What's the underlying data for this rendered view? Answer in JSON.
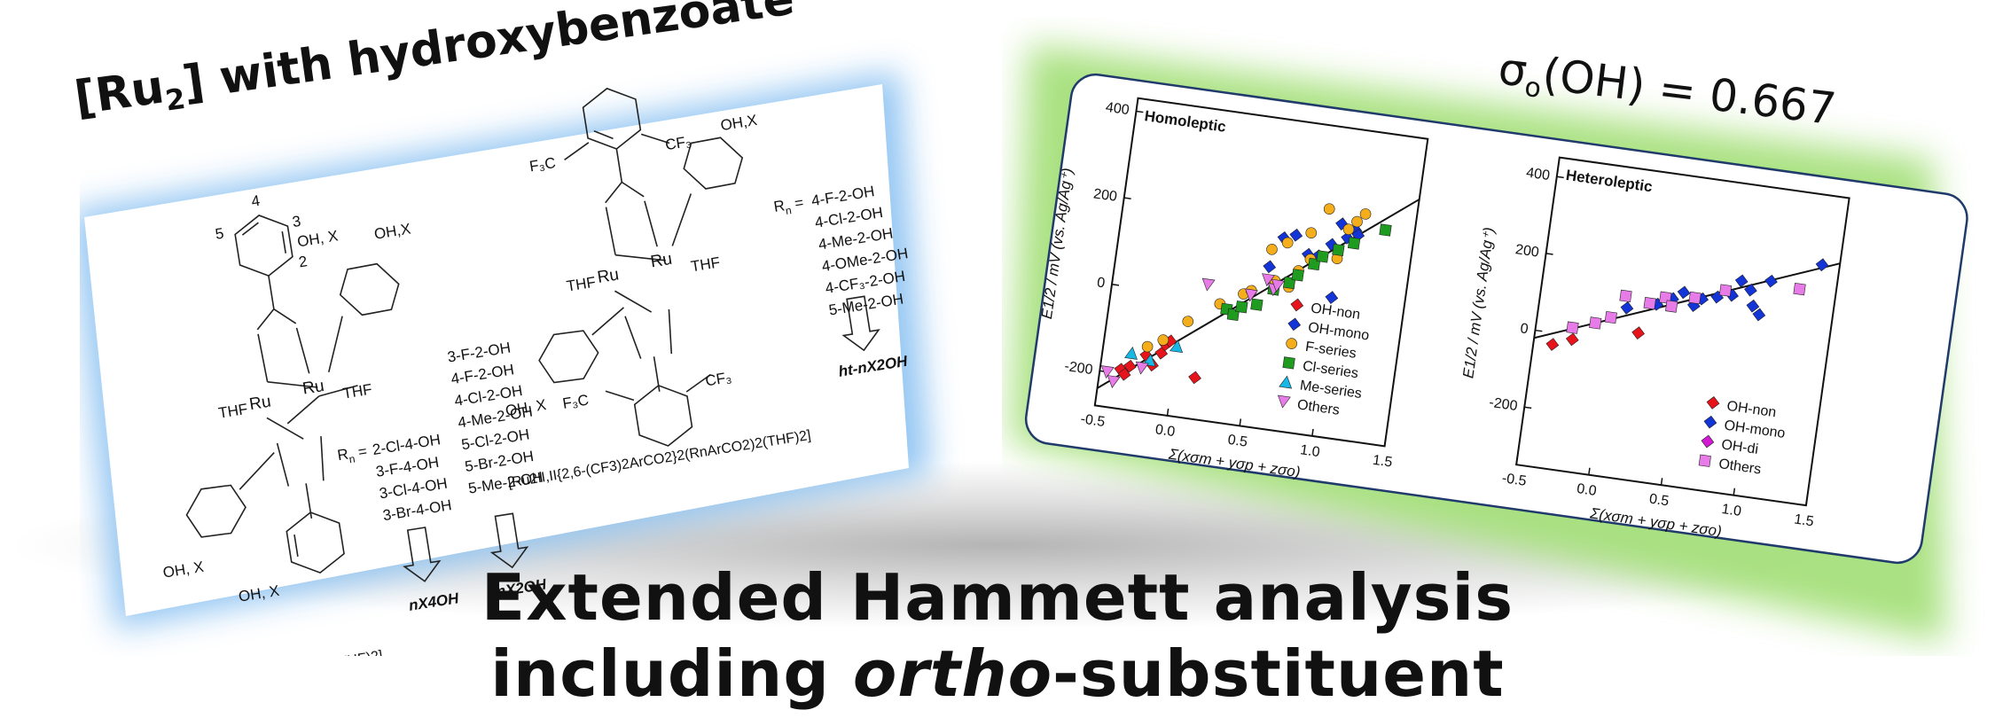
{
  "banner": {
    "left_title_pre": "[Ru",
    "left_title_sub": "2",
    "left_title_post": "] with hydroxybenzoate",
    "right_title_pre": "σ",
    "right_title_sub": "o",
    "right_title_post": "(OH) = 0.667",
    "headline_line1": "Extended Hammett analysis",
    "headline_line2_pre": "including ",
    "headline_line2_italic": "ortho",
    "headline_line2_post": "-substituent"
  },
  "colors": {
    "blue_glow": "#8ec3f2",
    "green_glow": "#a6e07c",
    "card_border": "#1f3a6b",
    "OH-non": "#e8141b",
    "OH-mono": "#1334d6",
    "OH-di": "#d11ad1",
    "F-series": "#f5ae1b",
    "Cl-series": "#1f9b1f",
    "Me-series": "#18b8e6",
    "Others": "#e77be8"
  },
  "structures": {
    "left": {
      "pos4": "4",
      "pos3": "3",
      "pos5": "5",
      "pos2": "2",
      "oh_x_top": "OH, X",
      "oh_x_right": "OH,X",
      "thf_left": "THF",
      "thf_right": "THF",
      "ru1": "Ru",
      "ru2": "Ru",
      "oh_x_bottom_left": "OH, X",
      "oh_x_bottom": "OH, X",
      "rn_label": "R",
      "rn_sub": "n",
      "rn_eq": " = ",
      "list_4oh": [
        "2-Cl-4-OH",
        "3-F-4-OH",
        "3-Cl-4-OH",
        "3-Br-4-OH"
      ],
      "list_2oh": [
        "3-F-2-OH",
        "4-F-2-OH",
        "4-Cl-2-OH",
        "4-Me-2-OH",
        "5-Cl-2-OH",
        "5-Br-2-OH",
        "5-Me-2-OH"
      ],
      "label_4oh": "nX4OH",
      "label_2oh": "nX2OH",
      "caption": "[Ru2II,II(RnArCO2)4(THF)2]"
    },
    "right": {
      "cf3_left": "F₃C",
      "cf3_right": "CF₃",
      "oh_x": "OH,X",
      "thf_left": "THF",
      "thf_right": "THF",
      "ru1": "Ru",
      "ru2": "Ru",
      "f3c_bottom": "F₃C",
      "cf3_bottom": "CF₃",
      "oh_x_bottom": "OH, X",
      "rn_label": "R",
      "rn_sub": "n",
      "rn_eq": " = ",
      "list": [
        "4-F-2-OH",
        "4-Cl-2-OH",
        "4-Me-2-OH",
        "4-OMe-2-OH",
        "4-CF₃-2-OH",
        "5-Me-2-OH"
      ],
      "label": "ht-nX2OH",
      "caption": "[Ru2II,II{2,6-(CF3)2ArCO2}2(RnArCO2)2(THF)2]"
    }
  },
  "chart_data": [
    {
      "type": "scatter",
      "title": "Homoleptic",
      "ylabel": "E1/2 / mV (vs. Ag/Ag⁺)",
      "xlabel": "Σ(xσm + yσp + zσo)",
      "xlim": [
        -0.5,
        1.5
      ],
      "ylim": [
        -280,
        430
      ],
      "xticks": [
        -0.5,
        0.0,
        0.5,
        1.0,
        1.5
      ],
      "xtick_labels": [
        "-0.5",
        "0.0",
        "0.5",
        "1.0",
        "1.5"
      ],
      "yticks": [
        -200,
        0,
        200,
        400
      ],
      "ytick_labels": [
        "-200",
        "0",
        "200",
        "400"
      ],
      "legend_position": "bottom-right",
      "fit_line": {
        "x": [
          -0.5,
          1.68
        ],
        "y": [
          -240,
          338
        ]
      },
      "series": [
        {
          "name": "OH-non",
          "marker": "diamond",
          "points": [
            [
              -0.36,
              -190
            ],
            [
              -0.33,
              -200
            ],
            [
              -0.3,
              -180
            ],
            [
              -0.2,
              -150
            ],
            [
              -0.15,
              -170
            ],
            [
              -0.1,
              -140
            ],
            [
              -0.08,
              -120
            ],
            [
              -0.05,
              -110
            ],
            [
              0.15,
              -185
            ]
          ]
        },
        {
          "name": "OH-mono",
          "marker": "diamond",
          "points": [
            [
              0.55,
              90
            ],
            [
              0.62,
              160
            ],
            [
              0.7,
              170
            ],
            [
              0.8,
              130
            ],
            [
              0.87,
              130
            ],
            [
              0.95,
              160
            ],
            [
              1.0,
              210
            ],
            [
              1.05,
              180
            ],
            [
              1.1,
              200
            ],
            [
              1.12,
              190
            ],
            [
              1.0,
              40
            ]
          ]
        },
        {
          "name": "F-series",
          "marker": "circle",
          "points": [
            [
              -0.2,
              -130
            ],
            [
              -0.1,
              -110
            ],
            [
              0.05,
              -60
            ],
            [
              0.25,
              -10
            ],
            [
              0.4,
              20
            ],
            [
              0.45,
              30
            ],
            [
              0.55,
              130
            ],
            [
              0.6,
              60
            ],
            [
              0.65,
              150
            ],
            [
              0.7,
              50
            ],
            [
              0.8,
              180
            ],
            [
              0.82,
              120
            ],
            [
              0.9,
              240
            ],
            [
              1.0,
              130
            ],
            [
              1.05,
              200
            ],
            [
              1.15,
              240
            ],
            [
              1.1,
              220
            ],
            [
              0.75,
              90
            ]
          ]
        },
        {
          "name": "Cl-series",
          "marker": "square",
          "points": [
            [
              0.3,
              -20
            ],
            [
              0.35,
              -30
            ],
            [
              0.4,
              -10
            ],
            [
              0.5,
              0
            ],
            [
              0.6,
              40
            ],
            [
              0.7,
              60
            ],
            [
              0.75,
              80
            ],
            [
              0.85,
              110
            ],
            [
              0.9,
              130
            ],
            [
              1.0,
              150
            ],
            [
              1.1,
              170
            ],
            [
              1.3,
              210
            ]
          ]
        },
        {
          "name": "Me-series",
          "marker": "triangle-up",
          "points": [
            [
              -0.3,
              -150
            ],
            [
              -0.17,
              -160
            ],
            [
              0.0,
              -120
            ]
          ]
        },
        {
          "name": "Others",
          "marker": "triangle-down",
          "points": [
            [
              -0.45,
              -200
            ],
            [
              -0.4,
              -220
            ],
            [
              -0.22,
              -180
            ],
            [
              0.45,
              20
            ],
            [
              0.55,
              60
            ],
            [
              0.6,
              40
            ],
            [
              0.62,
              50
            ],
            [
              0.15,
              30
            ]
          ]
        }
      ]
    },
    {
      "type": "scatter",
      "title": "Heteroleptic",
      "ylabel": "E1/2 / mV (vs. Ag/Ag⁺)",
      "xlabel": "Σ(xσm + yσp + zσo)",
      "xlim": [
        -0.5,
        1.5
      ],
      "ylim": [
        -350,
        450
      ],
      "xticks": [
        -0.5,
        0.0,
        0.5,
        1.0,
        1.5
      ],
      "xtick_labels": [
        "-0.5",
        "0.0",
        "0.5",
        "1.0",
        "1.5"
      ],
      "yticks": [
        -200,
        0,
        200,
        400
      ],
      "ytick_labels": [
        "-200",
        "0",
        "200",
        "400"
      ],
      "legend_position": "bottom-right",
      "fit_line": {
        "x": [
          -0.5,
          1.6
        ],
        "y": [
          -20,
          295
        ]
      },
      "series": [
        {
          "name": "OH-non",
          "marker": "diamond",
          "points": [
            [
              -0.37,
              -30
            ],
            [
              -0.24,
              -10
            ],
            [
              0.2,
              30
            ]
          ]
        },
        {
          "name": "OH-mono",
          "marker": "diamond",
          "points": [
            [
              0.1,
              90
            ],
            [
              0.3,
              110
            ],
            [
              0.4,
              130
            ],
            [
              0.47,
              150
            ],
            [
              0.55,
              120
            ],
            [
              0.6,
              140
            ],
            [
              0.7,
              150
            ],
            [
              0.8,
              160
            ],
            [
              0.85,
              200
            ],
            [
              0.92,
              180
            ],
            [
              0.95,
              140
            ],
            [
              1.0,
              120
            ],
            [
              1.05,
              210
            ],
            [
              1.38,
              270
            ]
          ]
        },
        {
          "name": "OH-di",
          "marker": "diamond",
          "points": [
            [
              1.55,
              300
            ]
          ]
        },
        {
          "name": "Others",
          "marker": "square",
          "points": [
            [
              -0.25,
              20
            ],
            [
              -0.1,
              40
            ],
            [
              0.0,
              60
            ],
            [
              0.08,
              120
            ],
            [
              0.25,
              110
            ],
            [
              0.35,
              130
            ],
            [
              0.4,
              110
            ],
            [
              0.55,
              140
            ],
            [
              0.75,
              170
            ],
            [
              1.25,
              200
            ]
          ]
        }
      ]
    }
  ]
}
